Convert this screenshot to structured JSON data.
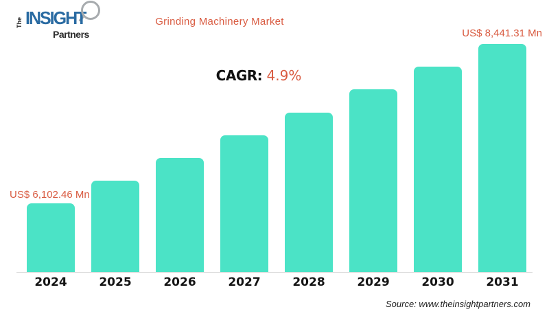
{
  "logo": {
    "the": "The",
    "insight": "INSIGHT",
    "partners": "Partners"
  },
  "header": {
    "title": "Grinding Machinery Market"
  },
  "cagr": {
    "label": "CAGR:",
    "value": "4.9%"
  },
  "annotations": {
    "first_bar_label": "US$ 6,102.46 Mn",
    "last_bar_label": "US$ 8,441.31 Mn"
  },
  "source": {
    "text": "Source: www.theinsightpartners.com"
  },
  "colors": {
    "bar_fill": "#4BE3C6",
    "accent_orange": "#D95B41",
    "logo_blue": "#2A6BA2",
    "axis_line": "#DCDCDC"
  },
  "chart_data": {
    "type": "bar",
    "title": "Grinding Machinery Market",
    "unit": "US$ Mn",
    "categories": [
      "2024",
      "2025",
      "2026",
      "2027",
      "2028",
      "2029",
      "2030",
      "2031"
    ],
    "values": [
      6102.46,
      6436.58,
      6770.7,
      7104.83,
      7438.95,
      7773.07,
      8107.19,
      8441.31
    ],
    "labeled_values": {
      "2024": 6102.46,
      "2031": 8441.31
    },
    "cagr_percent": 4.9,
    "xlabel": "",
    "ylabel": "",
    "ylim": [
      5100,
      8441.31
    ],
    "grid": false,
    "legend": false
  }
}
